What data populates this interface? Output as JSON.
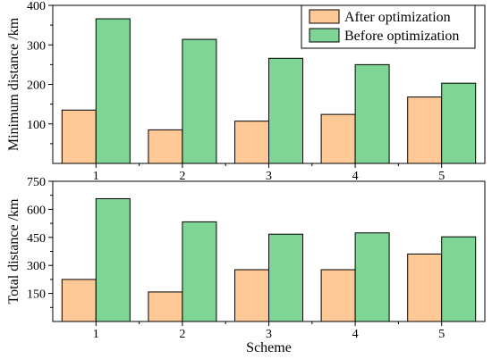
{
  "chart_data": [
    {
      "type": "bar",
      "categories": [
        "1",
        "2",
        "3",
        "4",
        "5"
      ],
      "ylabel": "Minimum distance /km",
      "xlabel": "",
      "ylim": [
        0,
        400
      ],
      "yticks": [
        100,
        200,
        300,
        400
      ],
      "grid": false,
      "legend_position": "top-right",
      "series": [
        {
          "name": "After optimization",
          "color": "#fec996",
          "values": [
            135,
            85,
            107,
            124,
            168
          ]
        },
        {
          "name": "Before optimization",
          "color": "#7fd596",
          "values": [
            366,
            314,
            266,
            250,
            203
          ]
        }
      ]
    },
    {
      "type": "bar",
      "categories": [
        "1",
        "2",
        "3",
        "4",
        "5"
      ],
      "ylabel": "Total distance /km",
      "xlabel": "Scheme",
      "ylim": [
        0,
        750
      ],
      "yticks": [
        150,
        300,
        450,
        600,
        750
      ],
      "grid": false,
      "series": [
        {
          "name": "After optimization",
          "color": "#fec996",
          "values": [
            225,
            158,
            277,
            277,
            361
          ]
        },
        {
          "name": "Before optimization",
          "color": "#7fd596",
          "values": [
            657,
            533,
            467,
            474,
            453
          ]
        }
      ]
    }
  ]
}
